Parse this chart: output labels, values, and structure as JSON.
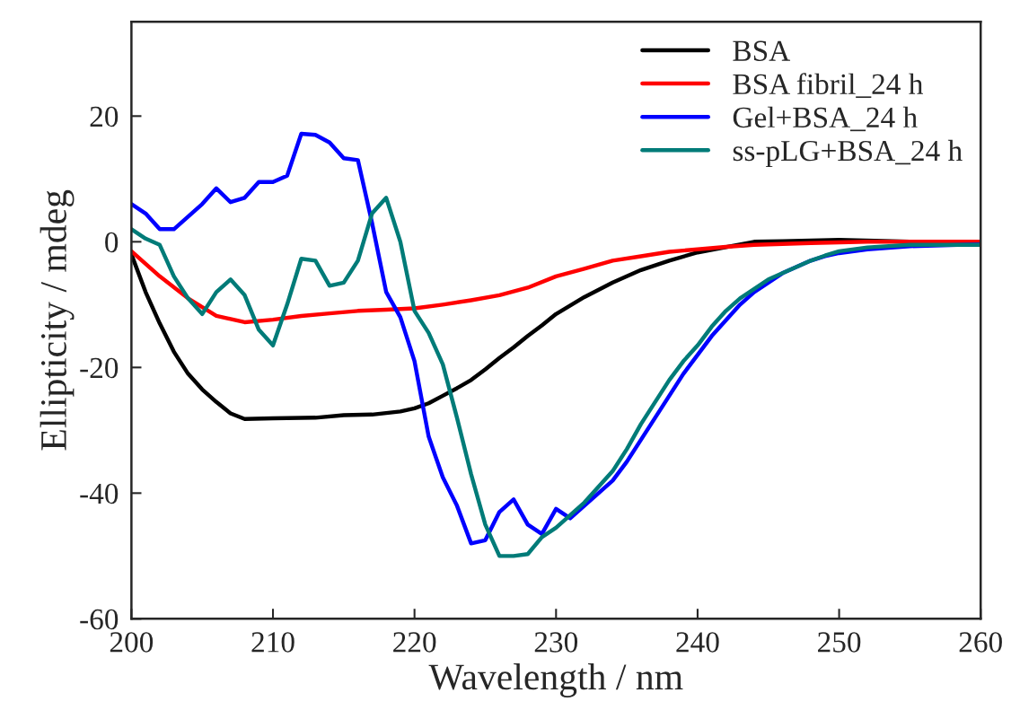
{
  "chart_data": {
    "type": "line",
    "xlabel": "Wavelength / nm",
    "ylabel": "Ellipticity / mdeg",
    "xlim": [
      200,
      260
    ],
    "xticks": [
      200,
      210,
      220,
      230,
      240,
      250,
      260
    ],
    "ylim": [
      -60,
      35
    ],
    "yticks": [
      -60,
      -40,
      -20,
      0,
      20
    ],
    "grid": false,
    "legend": "top right",
    "marker": "none",
    "line_style": "solid",
    "series": [
      {
        "name": "BSA",
        "color": "#000000",
        "x": [
          200,
          201,
          202,
          203,
          204,
          205,
          206,
          207,
          208,
          210,
          213,
          215,
          217,
          219,
          220,
          221,
          222,
          223,
          224,
          225,
          226,
          227,
          228,
          229,
          230,
          232,
          234,
          236,
          238,
          240,
          244,
          246,
          250,
          255,
          260
        ],
        "values": [
          -2,
          -8,
          -13,
          -17.5,
          -21,
          -23.5,
          -25.5,
          -27.3,
          -28.2,
          -28.1,
          -28,
          -27.6,
          -27.5,
          -27,
          -26.5,
          -25.7,
          -24.5,
          -23.3,
          -22,
          -20.3,
          -18.5,
          -16.8,
          -15,
          -13.3,
          -11.5,
          -8.8,
          -6.5,
          -4.5,
          -3,
          -1.7,
          0,
          0.1,
          0.3,
          0,
          0
        ]
      },
      {
        "name": "BSA fibril_24 h",
        "color": "#ff0000",
        "x": [
          200,
          202,
          204,
          206,
          208,
          210,
          212,
          214,
          216,
          218,
          220,
          222,
          224,
          226,
          228,
          230,
          232,
          234,
          236,
          238,
          240,
          242,
          244,
          248,
          252,
          260
        ],
        "values": [
          -1.5,
          -5.5,
          -9,
          -11.8,
          -12.8,
          -12.4,
          -11.8,
          -11.4,
          -11,
          -10.8,
          -10.6,
          -10,
          -9.3,
          -8.5,
          -7.3,
          -5.5,
          -4.3,
          -3,
          -2.3,
          -1.6,
          -1.2,
          -0.8,
          -0.5,
          -0.2,
          0,
          0
        ]
      },
      {
        "name": "Gel+BSA_24 h",
        "color": "#0000ff",
        "x": [
          200,
          201,
          202,
          203,
          204,
          205,
          206,
          207,
          208,
          209,
          210,
          211,
          212,
          213,
          214,
          215,
          216,
          217,
          218,
          219,
          220,
          221,
          222,
          223,
          224,
          225,
          226,
          227,
          228,
          229,
          230,
          231,
          232,
          233,
          234,
          235,
          236,
          237,
          238,
          239,
          240,
          241,
          242,
          243,
          244,
          245,
          246,
          247,
          248,
          249,
          250,
          252,
          255,
          260
        ],
        "values": [
          6,
          4.5,
          2,
          2,
          4,
          6,
          8.5,
          6.3,
          7,
          9.5,
          9.5,
          10.5,
          17.2,
          17,
          15.8,
          13.3,
          13,
          3,
          -8,
          -12,
          -19,
          -31,
          -37.5,
          -42,
          -48,
          -47.5,
          -43,
          -41,
          -45,
          -46.5,
          -42.5,
          -44,
          -42,
          -40,
          -38,
          -35,
          -31.5,
          -28,
          -24.5,
          -21,
          -18,
          -15,
          -12.5,
          -10,
          -8,
          -6.5,
          -5,
          -4,
          -3,
          -2.3,
          -1.8,
          -1.2,
          -0.7,
          -0.4
        ]
      },
      {
        "name": "ss-pLG+BSA_24 h",
        "color": "#007b78",
        "x": [
          200,
          201,
          202,
          203,
          204,
          205,
          206,
          207,
          208,
          209,
          210,
          211,
          212,
          213,
          214,
          215,
          216,
          217,
          218,
          219,
          220,
          221,
          222,
          223,
          224,
          225,
          226,
          227,
          228,
          229,
          230,
          231,
          232,
          233,
          234,
          235,
          236,
          237,
          238,
          239,
          240,
          241,
          242,
          243,
          244,
          245,
          246,
          247,
          248,
          249,
          250,
          252,
          255,
          260
        ],
        "values": [
          2,
          0.5,
          -0.5,
          -5.5,
          -9,
          -11.5,
          -8,
          -6,
          -8.5,
          -14,
          -16.5,
          -10,
          -2.7,
          -3,
          -7,
          -6.5,
          -3,
          4.5,
          7,
          0,
          -11,
          -14.5,
          -19.5,
          -28,
          -37,
          -45,
          -50,
          -50,
          -49.7,
          -47,
          -45.5,
          -43.5,
          -41.5,
          -39,
          -36.5,
          -33,
          -29,
          -25.5,
          -22,
          -19,
          -16.5,
          -13.5,
          -11,
          -9,
          -7.5,
          -6,
          -5,
          -4,
          -3,
          -2.2,
          -1.5,
          -0.9,
          -0.5,
          -0.5
        ]
      }
    ]
  }
}
